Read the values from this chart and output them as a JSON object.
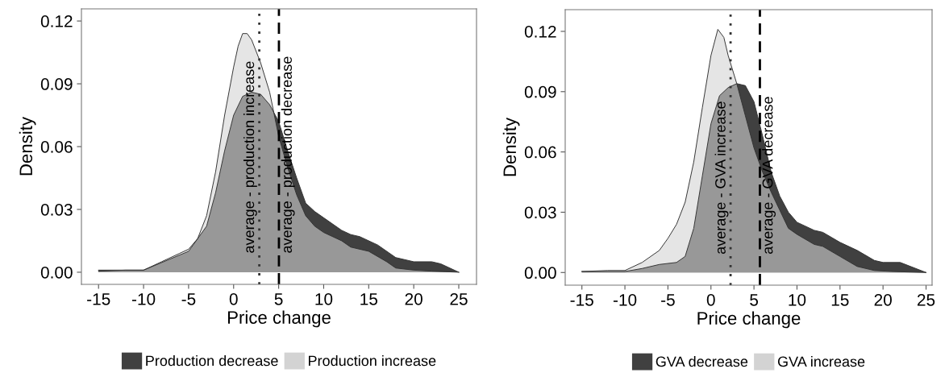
{
  "chart_data": [
    {
      "type": "area",
      "xlabel": "Price change",
      "ylabel": "Density",
      "legend": "bottom",
      "grid": false,
      "xlim": [
        -16.9,
        26.97
      ],
      "ylim": [
        -0.0058,
        0.1258
      ],
      "xticks": [
        -15,
        -10,
        -5,
        0,
        5,
        10,
        15,
        20,
        25
      ],
      "yticks": [
        {
          "value": 0,
          "label": "0.00"
        },
        {
          "value": 0.03,
          "label": "0.03"
        },
        {
          "value": 0.06,
          "label": "0.06"
        },
        {
          "value": 0.09,
          "label": "0.09"
        },
        {
          "value": 0.12,
          "label": "0.12"
        }
      ],
      "series": [
        {
          "name": "Production decrease",
          "color": "#404040",
          "x": [
            -15,
            -10,
            -5,
            -3,
            -2,
            -1,
            0,
            1,
            2,
            3,
            4,
            5,
            6,
            7,
            8,
            9,
            10,
            12,
            13,
            14,
            16,
            18,
            20,
            22,
            23,
            25
          ],
          "values": [
            0.001,
            0.001,
            0.01,
            0.022,
            0.038,
            0.058,
            0.075,
            0.084,
            0.086,
            0.085,
            0.08,
            0.072,
            0.058,
            0.045,
            0.033,
            0.029,
            0.026,
            0.02,
            0.018,
            0.017,
            0.013,
            0.007,
            0.005,
            0.005,
            0.004,
            0
          ]
        },
        {
          "name": "Production increase",
          "color": "#d3d3d3",
          "x": [
            -15,
            -12,
            -10,
            -8,
            -6,
            -5,
            -4,
            -3,
            -2,
            -1,
            0,
            0.5,
            1,
            1.5,
            2,
            3,
            4,
            5,
            6,
            7,
            8,
            9,
            10,
            12,
            13,
            15,
            17,
            18,
            20,
            22,
            25
          ],
          "values": [
            0.0005,
            0.001,
            0.001,
            0.005,
            0.009,
            0.011,
            0.016,
            0.027,
            0.048,
            0.075,
            0.098,
            0.108,
            0.114,
            0.114,
            0.111,
            0.1,
            0.086,
            0.065,
            0.05,
            0.037,
            0.027,
            0.022,
            0.019,
            0.015,
            0.012,
            0.01,
            0.005,
            0.002,
            0.001,
            0.0005,
            0
          ]
        }
      ],
      "ref_lines": [
        {
          "axis": "x",
          "value": 2.85,
          "label": "average - production increase",
          "line_style": "dotted",
          "color": "#333333"
        },
        {
          "axis": "x",
          "value": 5.03,
          "label": "average - production decrease",
          "line_style": "dashed",
          "color": "#000000"
        }
      ]
    },
    {
      "type": "area",
      "xlabel": "Price change",
      "ylabel": "Density",
      "legend": "bottom",
      "grid": false,
      "xlim": [
        -16.94,
        25.7
      ],
      "ylim": [
        -0.0063,
        0.1308
      ],
      "xticks": [
        -15,
        -10,
        -5,
        0,
        5,
        10,
        15,
        20,
        25
      ],
      "yticks": [
        {
          "value": 0,
          "label": "0.00"
        },
        {
          "value": 0.03,
          "label": "0.03"
        },
        {
          "value": 0.06,
          "label": "0.06"
        },
        {
          "value": 0.09,
          "label": "0.09"
        },
        {
          "value": 0.12,
          "label": "0.12"
        }
      ],
      "series": [
        {
          "name": "GVA decrease",
          "color": "#404040",
          "x": [
            -15,
            -10,
            -8,
            -6,
            -4,
            -3,
            -2,
            -1,
            0,
            1,
            2,
            3,
            4,
            5,
            6,
            7,
            8,
            9,
            10,
            12,
            13,
            15,
            17,
            19,
            20,
            22,
            25
          ],
          "values": [
            0.0005,
            0.0005,
            0.002,
            0.004,
            0.005,
            0.008,
            0.022,
            0.048,
            0.074,
            0.088,
            0.092,
            0.094,
            0.093,
            0.085,
            0.068,
            0.05,
            0.038,
            0.03,
            0.025,
            0.021,
            0.02,
            0.015,
            0.011,
            0.006,
            0.005,
            0.005,
            0
          ]
        },
        {
          "name": "GVA increase",
          "color": "#d3d3d3",
          "x": [
            -15,
            -12,
            -10,
            -8,
            -6,
            -5,
            -4,
            -3,
            -2,
            -1,
            0,
            0.8,
            1.5,
            2,
            3,
            4,
            5,
            6,
            7,
            8,
            9,
            10,
            12,
            13,
            15,
            17,
            19,
            21,
            25
          ],
          "values": [
            0.0005,
            0.001,
            0.001,
            0.005,
            0.011,
            0.017,
            0.024,
            0.035,
            0.055,
            0.082,
            0.108,
            0.121,
            0.117,
            0.108,
            0.094,
            0.078,
            0.062,
            0.05,
            0.04,
            0.031,
            0.022,
            0.019,
            0.014,
            0.013,
            0.008,
            0.003,
            0.001,
            0.0005,
            0
          ]
        }
      ],
      "ref_lines": [
        {
          "axis": "x",
          "value": 2.28,
          "label": "average - GVA increase",
          "line_style": "dotted",
          "color": "#333333"
        },
        {
          "axis": "x",
          "value": 5.69,
          "label": "average - GVA decrease",
          "line_style": "dashed",
          "color": "#000000"
        }
      ]
    }
  ]
}
